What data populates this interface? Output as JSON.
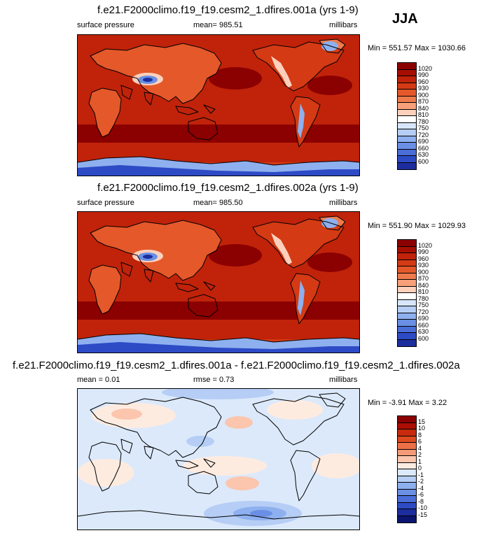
{
  "season": "JJA",
  "panels": [
    {
      "title": "f.e21.F2000climo.f19_f19.cesm2_1.dfires.001a (yrs 1-9)",
      "left_label": "surface pressure",
      "mean_label": "mean= 985.51",
      "units": "millibars",
      "minmax": "Min = 551.57 Max = 1030.66"
    },
    {
      "title": "f.e21.F2000climo.f19_f19.cesm2_1.dfires.002a (yrs 1-9)",
      "left_label": "surface pressure",
      "mean_label": "mean= 985.50",
      "units": "millibars",
      "minmax": "Min = 551.90 Max = 1029.93"
    },
    {
      "title": "f.e21.F2000climo.f19_f19.cesm2_1.dfires.001a - f.e21.F2000climo.f19_f19.cesm2_1.dfires.002a",
      "left_label": "mean =   0.01",
      "mean_label": "rmse =   0.73",
      "units": "millibars",
      "minmax": "Min =  -3.91 Max =   3.22"
    }
  ],
  "colorbar_pressure": {
    "labels": [
      "1020",
      "990",
      "960",
      "930",
      "900",
      "870",
      "840",
      "810",
      "780",
      "750",
      "720",
      "690",
      "660",
      "630",
      "600"
    ],
    "colors": [
      "#8b0000",
      "#a60e02",
      "#c0230a",
      "#d43a14",
      "#e4582a",
      "#ef7a4c",
      "#f7a07a",
      "#fdd0bc",
      "#ffffff",
      "#d8e6fb",
      "#b6cef5",
      "#8eb0ef",
      "#6a8fe4",
      "#4a6dd8",
      "#2e4bc6",
      "#1c2e9e"
    ]
  },
  "colorbar_diff": {
    "labels": [
      "15",
      "10",
      "8",
      "6",
      "4",
      "2",
      "1",
      "0",
      "-1",
      "-2",
      "-4",
      "-6",
      "-8",
      "-10",
      "-15"
    ],
    "colors": [
      "#8b0000",
      "#ac0d04",
      "#c82a0e",
      "#dd4a20",
      "#ec7046",
      "#f59a78",
      "#fbc6ad",
      "#feebe0",
      "#dce9fb",
      "#b6cef5",
      "#8eb0ef",
      "#6a8fe4",
      "#4a6dd8",
      "#2e4bc6",
      "#1c2e9e",
      "#0b1570"
    ]
  }
}
